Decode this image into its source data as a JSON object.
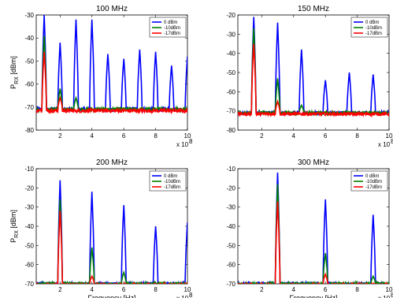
{
  "chart_data": [
    {
      "type": "line",
      "title": "100 MHz",
      "ylabel": "P_RX [dBm]",
      "xlabel": "",
      "xlim": [
        0.5,
        10
      ],
      "ylim": [
        -80,
        -30
      ],
      "xticks": [
        2,
        4,
        6,
        8,
        10
      ],
      "yticks": [
        -80,
        -70,
        -60,
        -50,
        -40,
        -30
      ],
      "x_exponent_label": "x 10",
      "x_exponent": "8",
      "legend": [
        "0 dBm",
        "-10dBm",
        "-17dBm"
      ],
      "legend_position": "top-right",
      "noise_floor": -71,
      "series": [
        {
          "name": "0 dBm",
          "color": "#0000ff",
          "peaks": [
            {
              "x": 1,
              "y": -30
            },
            {
              "x": 2,
              "y": -42
            },
            {
              "x": 3,
              "y": -32
            },
            {
              "x": 4,
              "y": -32
            },
            {
              "x": 5,
              "y": -47
            },
            {
              "x": 6,
              "y": -49
            },
            {
              "x": 7,
              "y": -45
            },
            {
              "x": 8,
              "y": -46
            },
            {
              "x": 9,
              "y": -52
            },
            {
              "x": 10,
              "y": -48
            }
          ]
        },
        {
          "name": "-10dBm",
          "color": "#008000",
          "peaks": [
            {
              "x": 1,
              "y": -39
            },
            {
              "x": 2,
              "y": -62
            },
            {
              "x": 3,
              "y": -66
            }
          ]
        },
        {
          "name": "-17dBm",
          "color": "#ff0000",
          "peaks": [
            {
              "x": 1,
              "y": -46
            },
            {
              "x": 2,
              "y": -66
            }
          ]
        }
      ]
    },
    {
      "type": "line",
      "title": "150 MHz",
      "ylabel": "",
      "xlabel": "",
      "xlim": [
        0.5,
        10
      ],
      "ylim": [
        -80,
        -20
      ],
      "xticks": [
        2,
        4,
        6,
        8,
        10
      ],
      "yticks": [
        -80,
        -70,
        -60,
        -50,
        -40,
        -30,
        -20
      ],
      "x_exponent_label": "x 10",
      "x_exponent": "8",
      "legend": [
        "0 dBm",
        "-10dBm",
        "-17dBm"
      ],
      "legend_position": "top-right",
      "noise_floor": -71,
      "series": [
        {
          "name": "0 dBm",
          "color": "#0000ff",
          "peaks": [
            {
              "x": 1.5,
              "y": -21
            },
            {
              "x": 3,
              "y": -24
            },
            {
              "x": 4.5,
              "y": -38
            },
            {
              "x": 6,
              "y": -54
            },
            {
              "x": 7.5,
              "y": -50
            },
            {
              "x": 9,
              "y": -51
            }
          ]
        },
        {
          "name": "-10dBm",
          "color": "#008000",
          "peaks": [
            {
              "x": 1.5,
              "y": -27
            },
            {
              "x": 3,
              "y": -53
            },
            {
              "x": 4.5,
              "y": -67
            }
          ]
        },
        {
          "name": "-17dBm",
          "color": "#ff0000",
          "peaks": [
            {
              "x": 1.5,
              "y": -35
            },
            {
              "x": 3,
              "y": -65
            }
          ]
        }
      ]
    },
    {
      "type": "line",
      "title": "200 MHz",
      "ylabel": "P_RX [dBm]",
      "xlabel": "Frequency [Hz]",
      "xlim": [
        0.5,
        10
      ],
      "ylim": [
        -70,
        -10
      ],
      "xticks": [
        2,
        4,
        6,
        8,
        10
      ],
      "yticks": [
        -70,
        -60,
        -50,
        -40,
        -30,
        -20,
        -10
      ],
      "x_exponent_label": "x 10",
      "x_exponent": "8",
      "legend": [
        "0 dBm",
        "-10dBm",
        "-17dBm"
      ],
      "legend_position": "top-right",
      "noise_floor": -70,
      "series": [
        {
          "name": "0 dBm",
          "color": "#0000ff",
          "peaks": [
            {
              "x": 2,
              "y": -16
            },
            {
              "x": 4,
              "y": -22
            },
            {
              "x": 6,
              "y": -29
            },
            {
              "x": 8,
              "y": -40
            },
            {
              "x": 10,
              "y": -38
            }
          ]
        },
        {
          "name": "-10dBm",
          "color": "#008000",
          "peaks": [
            {
              "x": 2,
              "y": -26
            },
            {
              "x": 4,
              "y": -51
            },
            {
              "x": 6,
              "y": -64
            }
          ]
        },
        {
          "name": "-17dBm",
          "color": "#ff0000",
          "peaks": [
            {
              "x": 2,
              "y": -32
            },
            {
              "x": 4,
              "y": -66
            }
          ]
        }
      ]
    },
    {
      "type": "line",
      "title": "300 MHz",
      "ylabel": "",
      "xlabel": "Frequency [Hz]",
      "xlim": [
        0.5,
        10
      ],
      "ylim": [
        -70,
        -10
      ],
      "xticks": [
        2,
        4,
        6,
        8,
        10
      ],
      "yticks": [
        -70,
        -60,
        -50,
        -40,
        -30,
        -20,
        -10
      ],
      "x_exponent_label": "x 10",
      "x_exponent": "8",
      "legend": [
        "0 dBm",
        "-10dBm",
        "-17dBm"
      ],
      "legend_position": "top-right",
      "noise_floor": -70,
      "series": [
        {
          "name": "0 dBm",
          "color": "#0000ff",
          "peaks": [
            {
              "x": 3,
              "y": -12
            },
            {
              "x": 6,
              "y": -26
            },
            {
              "x": 9,
              "y": -34
            }
          ]
        },
        {
          "name": "-10dBm",
          "color": "#008000",
          "peaks": [
            {
              "x": 3,
              "y": -18
            },
            {
              "x": 6,
              "y": -54
            },
            {
              "x": 9,
              "y": -66
            }
          ]
        },
        {
          "name": "-17dBm",
          "color": "#ff0000",
          "peaks": [
            {
              "x": 3,
              "y": -27
            },
            {
              "x": 6,
              "y": -65
            }
          ]
        }
      ]
    }
  ]
}
